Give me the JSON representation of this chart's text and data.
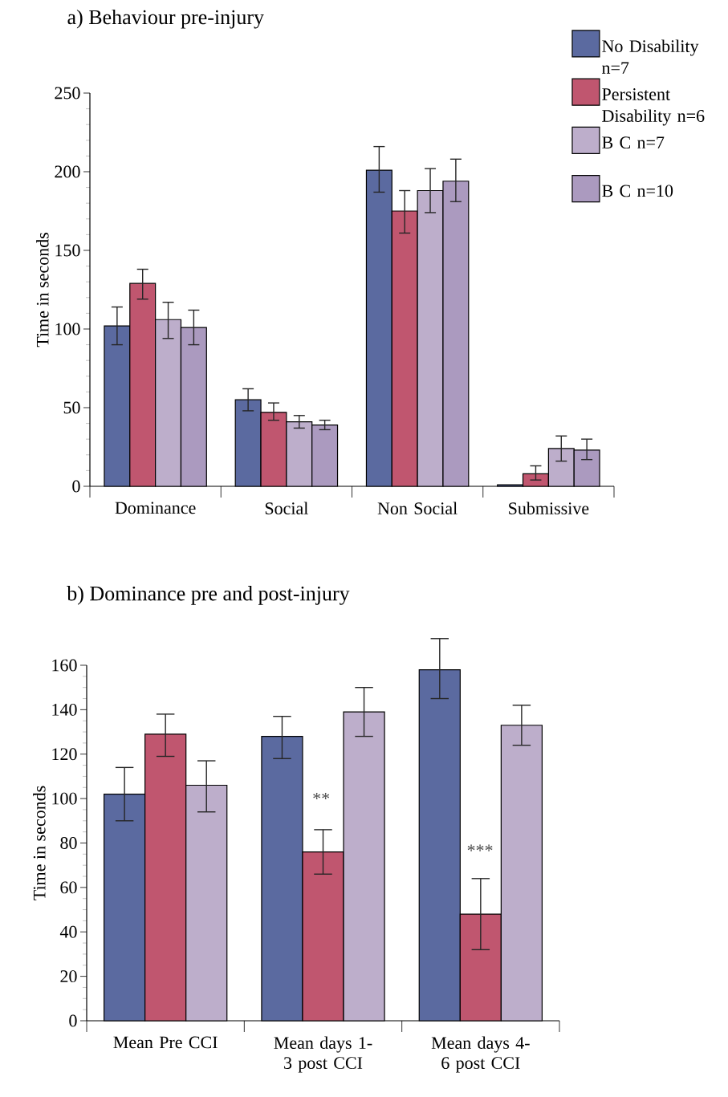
{
  "chart_data": [
    {
      "type": "bar",
      "title": "a)  Behaviour pre-injury",
      "ylabel": "Time in seconds",
      "categories": [
        "Dominance",
        "Social",
        "Non Social",
        "Submissive"
      ],
      "ylim": [
        0,
        250
      ],
      "yticks": [
        0,
        50,
        100,
        150,
        200,
        250
      ],
      "legend": "top right",
      "series": [
        {
          "name": "No Disability n=7",
          "color": "#5b6aa0",
          "values": [
            102,
            55,
            201,
            1
          ],
          "errors": [
            [
              90,
              114
            ],
            [
              48,
              62
            ],
            [
              187,
              216
            ],
            null
          ]
        },
        {
          "name": "Persistent Disability n=6",
          "color": "#c0566f",
          "values": [
            129,
            47,
            175,
            8
          ],
          "errors": [
            [
              119,
              138
            ],
            [
              42,
              53
            ],
            [
              161,
              188
            ],
            [
              4,
              13
            ]
          ]
        },
        {
          "name": "B C n=7",
          "color": "#bdaecb",
          "values": [
            106,
            41,
            188,
            24
          ],
          "errors": [
            [
              94,
              117
            ],
            [
              37,
              45
            ],
            [
              174,
              202
            ],
            [
              16,
              32
            ]
          ]
        },
        {
          "name": "B C n=10",
          "color": "#ab9abf",
          "values": [
            101,
            39,
            194,
            23
          ],
          "errors": [
            [
              90,
              112
            ],
            [
              36,
              42
            ],
            [
              181,
              208
            ],
            [
              17,
              30
            ]
          ]
        }
      ]
    },
    {
      "type": "bar",
      "title": "b) Dominance pre and post-injury",
      "ylabel": "Time in seconds",
      "categories": [
        "Mean Pre CCI",
        "Mean days 1-3 post CCI",
        "Mean days 4-6 post CCI"
      ],
      "ylim": [
        0,
        160
      ],
      "yticks": [
        0,
        20,
        40,
        60,
        80,
        100,
        120,
        140,
        160
      ],
      "series": [
        {
          "color": "#5b6aa0",
          "values": [
            102,
            128,
            158
          ],
          "errors": [
            [
              90,
              114
            ],
            [
              118,
              137
            ],
            [
              145,
              172
            ]
          ]
        },
        {
          "color": "#c0566f",
          "values": [
            129,
            76,
            48
          ],
          "errors": [
            [
              119,
              138
            ],
            [
              66,
              86
            ],
            [
              32,
              64
            ]
          ]
        },
        {
          "color": "#bdaecb",
          "values": [
            106,
            139,
            133
          ],
          "errors": [
            [
              94,
              117
            ],
            [
              128,
              150
            ],
            [
              124,
              142
            ]
          ]
        }
      ],
      "annotations": [
        "**",
        "***"
      ]
    }
  ]
}
